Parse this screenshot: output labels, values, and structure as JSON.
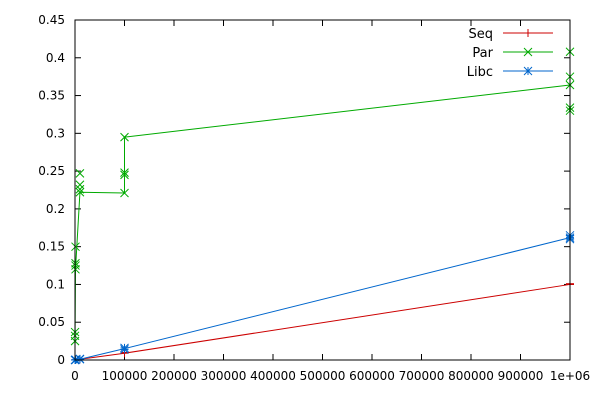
{
  "chart_data": {
    "type": "line",
    "title": "",
    "xlabel": "",
    "ylabel": "",
    "xlim": [
      0,
      1000000
    ],
    "ylim": [
      0,
      0.45
    ],
    "x_ticks": [
      0,
      100000,
      200000,
      300000,
      400000,
      500000,
      600000,
      700000,
      800000,
      900000,
      1000000
    ],
    "x_tick_labels": [
      "0",
      "100000",
      "200000",
      "300000",
      "400000",
      "500000",
      "600000",
      "700000",
      "800000",
      "900000",
      "1e+06"
    ],
    "y_ticks": [
      0,
      0.05,
      0.1,
      0.15,
      0.2,
      0.25,
      0.3,
      0.35,
      0.4,
      0.45
    ],
    "y_tick_labels": [
      "0",
      "0.05",
      "0.1",
      "0.15",
      "0.2",
      "0.25",
      "0.3",
      "0.35",
      "0.4",
      "0.45"
    ],
    "grid": false,
    "legend": "top-right",
    "series": [
      {
        "name": "Seq",
        "color": "#cc0000",
        "marker": "plus",
        "line_x": [
          100,
          1000,
          10000,
          100000,
          1000000
        ],
        "line_y": [
          0.0,
          0.0002,
          0.001,
          0.009,
          0.1
        ],
        "points": [
          [
            100,
            0.0
          ],
          [
            100,
            0.0
          ],
          [
            1000,
            0.0002
          ],
          [
            1000,
            0.0002
          ],
          [
            10000,
            0.001
          ],
          [
            10000,
            0.001
          ],
          [
            100000,
            0.009
          ],
          [
            100000,
            0.01
          ],
          [
            1000000,
            0.1
          ],
          [
            1000000,
            0.101
          ],
          [
            1000000,
            0.1
          ]
        ]
      },
      {
        "name": "Par",
        "color": "#00aa00",
        "marker": "cross",
        "line_x": [
          100,
          1000,
          10000,
          100000,
          100000,
          1000000
        ],
        "line_y": [
          0.03,
          0.12,
          0.222,
          0.221,
          0.295,
          0.364
        ],
        "points": [
          [
            100,
            0.025
          ],
          [
            100,
            0.032
          ],
          [
            100,
            0.037
          ],
          [
            1000,
            0.12
          ],
          [
            1000,
            0.125
          ],
          [
            1000,
            0.128
          ],
          [
            1000,
            0.15
          ],
          [
            10000,
            0.222
          ],
          [
            10000,
            0.226
          ],
          [
            10000,
            0.232
          ],
          [
            10000,
            0.247
          ],
          [
            100000,
            0.221
          ],
          [
            100000,
            0.245
          ],
          [
            100000,
            0.248
          ],
          [
            100000,
            0.295
          ],
          [
            1000000,
            0.33
          ],
          [
            1000000,
            0.334
          ],
          [
            1000000,
            0.364
          ],
          [
            1000000,
            0.375
          ],
          [
            1000000,
            0.408
          ]
        ]
      },
      {
        "name": "Libc",
        "color": "#0066cc",
        "marker": "star",
        "line_x": [
          100,
          1000,
          10000,
          100000,
          1000000
        ],
        "line_y": [
          0.0,
          0.0002,
          0.001,
          0.015,
          0.162
        ],
        "points": [
          [
            100,
            0.0
          ],
          [
            100,
            0.0
          ],
          [
            1000,
            0.0002
          ],
          [
            1000,
            0.0003
          ],
          [
            10000,
            0.001
          ],
          [
            10000,
            0.0015
          ],
          [
            100000,
            0.014
          ],
          [
            100000,
            0.016
          ],
          [
            1000000,
            0.16
          ],
          [
            1000000,
            0.162
          ],
          [
            1000000,
            0.165
          ]
        ]
      }
    ]
  }
}
